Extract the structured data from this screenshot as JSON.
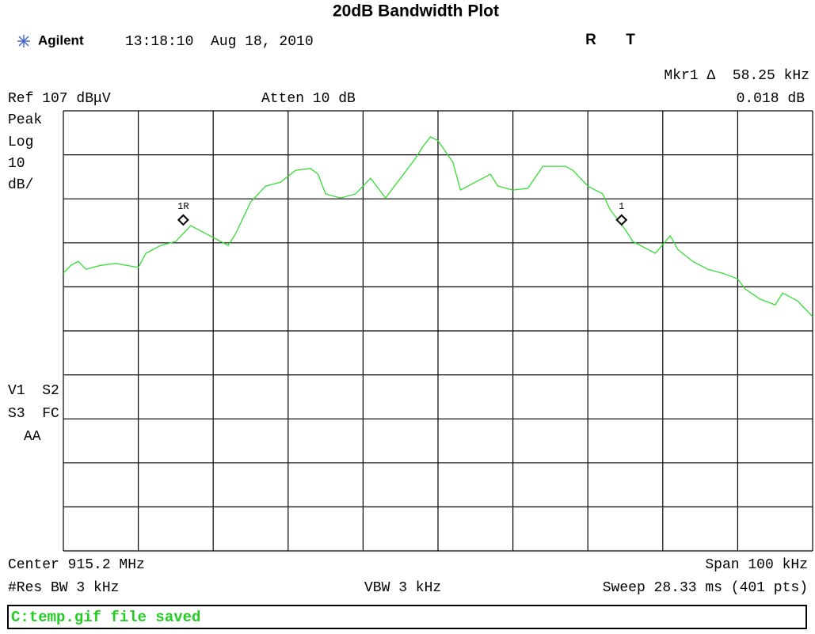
{
  "header": {
    "title": "20dB Bandwidth Plot",
    "brand": "Agilent",
    "timestamp": "13:18:10  Aug 18, 2010",
    "flag_r": "R",
    "flag_t": "T"
  },
  "settings": {
    "marker_readout": "Mkr1 Δ  58.25 kHz",
    "marker_delta": "0.018 dB",
    "ref_level": "Ref 107 dBμV",
    "attenuation": "Atten 10 dB",
    "scale": [
      "Peak",
      "Log",
      "10",
      "dB/"
    ],
    "status_left": [
      "V1  S2",
      "S3  FC",
      "AA"
    ],
    "center": "Center 915.2 MHz",
    "span": "Span 100 kHz",
    "res_bw": "#Res BW 3 kHz",
    "vbw": "VBW 3 kHz",
    "sweep": "Sweep 28.33 ms (401 pts)"
  },
  "chart_data": {
    "type": "line",
    "color": "#33dd33",
    "xlim": [
      915.15,
      915.25
    ],
    "ylim": [
      7,
      107
    ],
    "x": [
      915.15,
      915.151,
      915.152,
      915.153,
      915.155,
      915.157,
      915.16,
      915.161,
      915.162,
      915.163,
      915.165,
      915.166,
      915.167,
      915.17,
      915.172,
      915.173,
      915.175,
      915.177,
      915.179,
      915.181,
      915.183,
      915.184,
      915.185,
      915.187,
      915.189,
      915.191,
      915.193,
      915.195,
      915.197,
      915.198,
      915.199,
      915.2,
      915.202,
      915.203,
      915.205,
      915.207,
      915.208,
      915.21,
      915.212,
      915.214,
      915.217,
      915.218,
      915.22,
      915.222,
      915.223,
      915.225,
      915.226,
      915.228,
      915.229,
      915.231,
      915.232,
      915.234,
      915.236,
      915.238,
      915.24,
      915.241,
      915.243,
      915.245,
      915.246,
      915.248,
      915.25
    ],
    "values": [
      70.1,
      71.9,
      72.8,
      71,
      71.9,
      72.3,
      71.4,
      74.6,
      75.5,
      76.4,
      77.3,
      79.1,
      80.9,
      78.2,
      76.4,
      79.1,
      86.3,
      89.9,
      90.8,
      93.5,
      93.9,
      92.6,
      88.1,
      87.2,
      88.1,
      91.7,
      87.2,
      91.7,
      96.2,
      98.9,
      101.1,
      100.2,
      95.3,
      89,
      90.8,
      92.6,
      89.9,
      89,
      89.4,
      94.4,
      94.4,
      93.5,
      89.9,
      88.1,
      84.5,
      80,
      77.3,
      75.5,
      74.6,
      78.6,
      75.5,
      72.8,
      71,
      70.1,
      68.8,
      66.5,
      64.2,
      62.9,
      65.6,
      63.8,
      60.2
    ],
    "markers": [
      {
        "label": "1R",
        "x": 915.166,
        "y": 82.2
      },
      {
        "label": "1",
        "x": 915.2245,
        "y": 82.2
      }
    ]
  },
  "status_bar": "C:temp.gif file saved"
}
